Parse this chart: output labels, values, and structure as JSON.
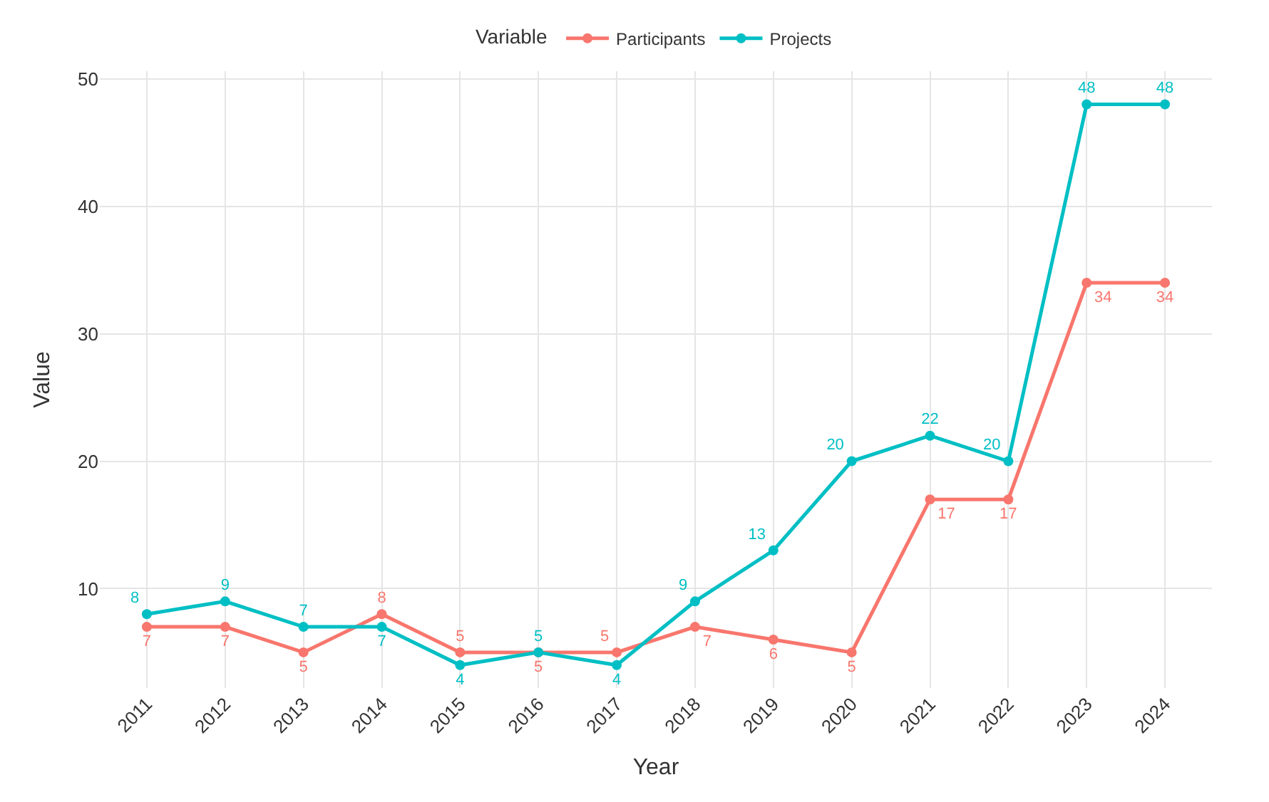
{
  "chart_data": {
    "type": "line",
    "xlabel": "Year",
    "ylabel": "Value",
    "legend_title": "Variable",
    "legend": "top",
    "categories": [
      "2011",
      "2012",
      "2013",
      "2014",
      "2015",
      "2016",
      "2017",
      "2018",
      "2019",
      "2020",
      "2021",
      "2022",
      "2023",
      "2024"
    ],
    "series": [
      {
        "name": "Participants",
        "color": "#f8766d",
        "values": [
          7,
          7,
          5,
          8,
          5,
          5,
          5,
          7,
          6,
          5,
          17,
          17,
          34,
          34
        ]
      },
      {
        "name": "Projects",
        "color": "#00bfc4",
        "values": [
          8,
          9,
          7,
          7,
          4,
          5,
          4,
          9,
          13,
          20,
          22,
          20,
          48,
          48
        ]
      }
    ],
    "ylim": [
      2.2,
      50.6
    ],
    "yticks": [
      10,
      20,
      30,
      40,
      50
    ],
    "grid": true,
    "marker": "circle",
    "line_style": "solid",
    "data_labels": true
  }
}
